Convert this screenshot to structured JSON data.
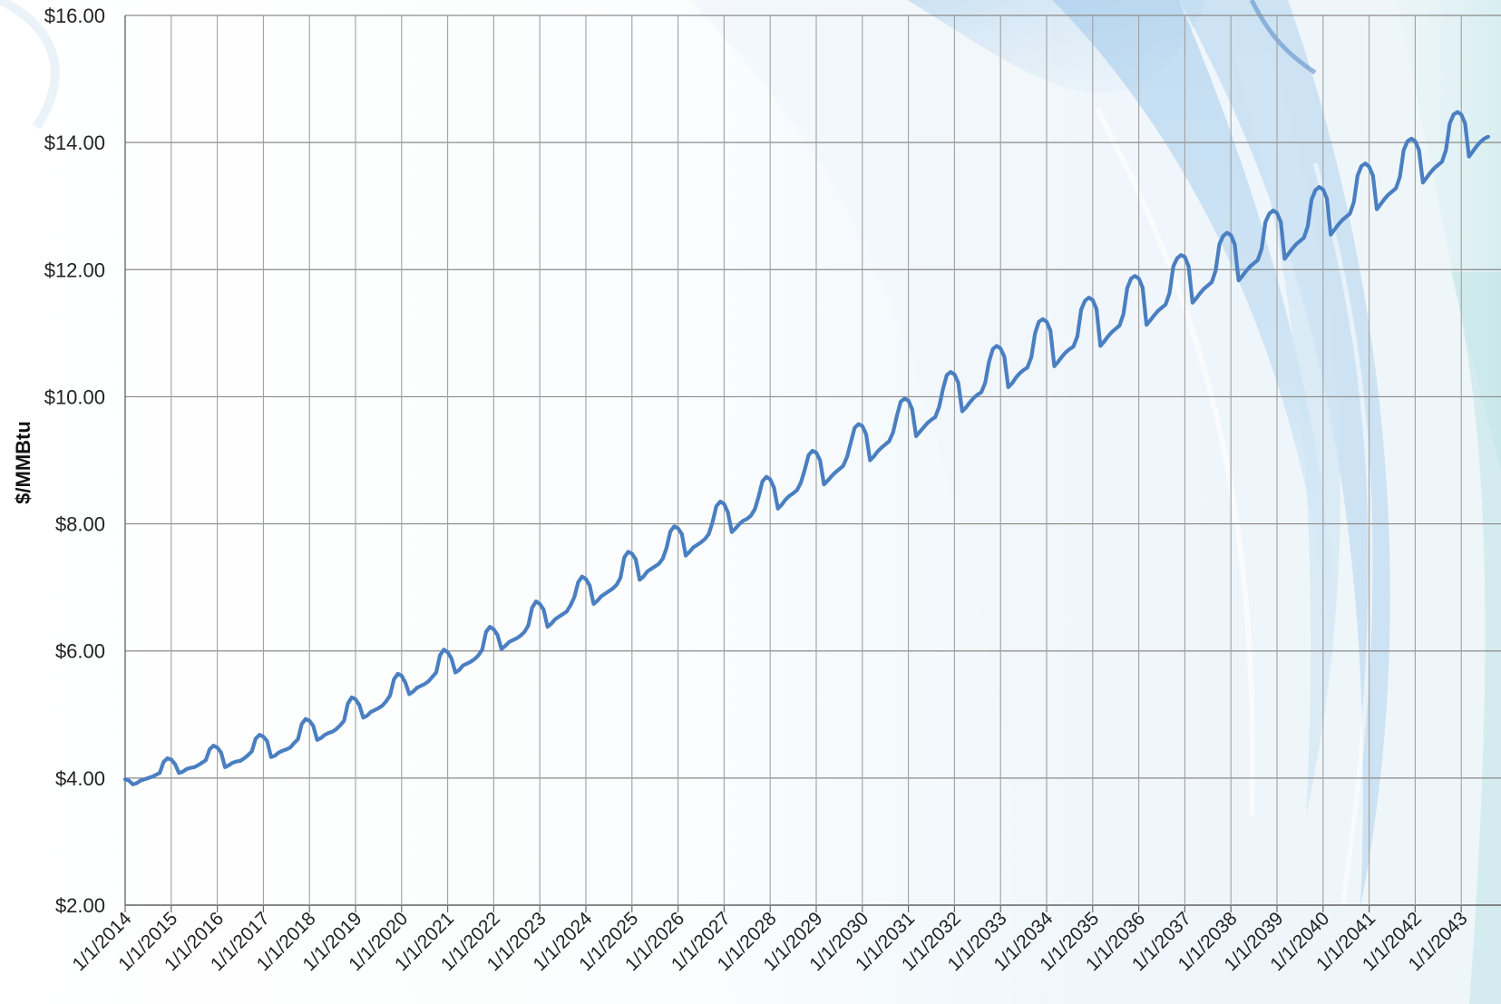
{
  "chart_data": {
    "type": "line",
    "title": "",
    "xlabel": "",
    "ylabel": "$/MMBtu",
    "ylim": [
      2,
      16
    ],
    "y_ticks": [
      16,
      14,
      12,
      10,
      8,
      6,
      4,
      2
    ],
    "y_tick_labels": [
      "$16.00",
      "$14.00",
      "$12.00",
      "$10.00",
      "$8.00",
      "$6.00",
      "$4.00",
      "$2.00"
    ],
    "x_range": [
      "2014-01-01",
      "2043-12-01"
    ],
    "x_tick_labels": [
      "1/1/2014",
      "1/1/2015",
      "1/1/2016",
      "1/1/2017",
      "1/1/2018",
      "1/1/2019",
      "1/1/2020",
      "1/1/2021",
      "1/1/2022",
      "1/1/2023",
      "1/1/2024",
      "1/1/2025",
      "1/1/2026",
      "1/1/2027",
      "1/1/2028",
      "1/1/2029",
      "1/1/2030",
      "1/1/2031",
      "1/1/2032",
      "1/1/2033",
      "1/1/2034",
      "1/1/2035",
      "1/1/2036",
      "1/1/2037",
      "1/1/2038",
      "1/1/2039",
      "1/1/2040",
      "1/1/2041",
      "1/1/2042",
      "1/1/2043"
    ],
    "grid": true,
    "line_color": "#4A7FC1",
    "series": [
      {
        "frequency": "monthly",
        "start": "2014-01",
        "values": [
          3.98,
          3.96,
          3.9,
          3.92,
          3.96,
          3.98,
          4.0,
          4.02,
          4.05,
          4.08,
          4.25,
          4.31,
          4.29,
          4.22,
          4.08,
          4.1,
          4.14,
          4.16,
          4.17,
          4.2,
          4.24,
          4.28,
          4.45,
          4.51,
          4.48,
          4.4,
          4.17,
          4.2,
          4.24,
          4.26,
          4.27,
          4.31,
          4.36,
          4.42,
          4.62,
          4.68,
          4.65,
          4.58,
          4.33,
          4.35,
          4.4,
          4.43,
          4.45,
          4.48,
          4.55,
          4.61,
          4.85,
          4.93,
          4.9,
          4.82,
          4.6,
          4.63,
          4.68,
          4.71,
          4.73,
          4.77,
          4.83,
          4.9,
          5.17,
          5.27,
          5.24,
          5.15,
          4.95,
          4.98,
          5.04,
          5.07,
          5.1,
          5.14,
          5.21,
          5.3,
          5.55,
          5.64,
          5.61,
          5.5,
          5.32,
          5.36,
          5.42,
          5.45,
          5.48,
          5.52,
          5.59,
          5.66,
          5.93,
          6.02,
          5.98,
          5.88,
          5.66,
          5.7,
          5.77,
          5.8,
          5.83,
          5.87,
          5.93,
          6.02,
          6.3,
          6.38,
          6.34,
          6.25,
          6.03,
          6.08,
          6.14,
          6.17,
          6.2,
          6.24,
          6.3,
          6.4,
          6.68,
          6.78,
          6.74,
          6.65,
          6.38,
          6.43,
          6.5,
          6.54,
          6.58,
          6.62,
          6.72,
          6.85,
          7.08,
          7.17,
          7.13,
          7.03,
          6.74,
          6.79,
          6.86,
          6.9,
          6.94,
          6.98,
          7.04,
          7.15,
          7.47,
          7.56,
          7.53,
          7.44,
          7.12,
          7.17,
          7.25,
          7.29,
          7.33,
          7.37,
          7.45,
          7.62,
          7.88,
          7.96,
          7.93,
          7.84,
          7.5,
          7.56,
          7.63,
          7.67,
          7.71,
          7.76,
          7.84,
          8.03,
          8.28,
          8.35,
          8.31,
          8.18,
          7.87,
          7.93,
          8.0,
          8.05,
          8.08,
          8.13,
          8.23,
          8.43,
          8.67,
          8.74,
          8.7,
          8.57,
          8.24,
          8.3,
          8.38,
          8.44,
          8.48,
          8.53,
          8.65,
          8.85,
          9.08,
          9.15,
          9.12,
          9.0,
          8.62,
          8.68,
          8.75,
          8.81,
          8.86,
          8.91,
          9.05,
          9.28,
          9.51,
          9.57,
          9.54,
          9.41,
          9.0,
          9.06,
          9.14,
          9.2,
          9.25,
          9.3,
          9.44,
          9.7,
          9.92,
          9.97,
          9.94,
          9.8,
          9.38,
          9.45,
          9.52,
          9.59,
          9.64,
          9.68,
          9.84,
          10.12,
          10.34,
          10.39,
          10.35,
          10.22,
          9.77,
          9.83,
          9.91,
          9.98,
          10.03,
          10.07,
          10.22,
          10.55,
          10.75,
          10.8,
          10.76,
          10.63,
          10.15,
          10.21,
          10.3,
          10.37,
          10.42,
          10.46,
          10.62,
          11.0,
          11.18,
          11.22,
          11.18,
          11.04,
          10.48,
          10.55,
          10.63,
          10.7,
          10.75,
          10.79,
          10.95,
          11.37,
          11.51,
          11.56,
          11.52,
          11.38,
          10.8,
          10.87,
          10.95,
          11.02,
          11.07,
          11.12,
          11.3,
          11.71,
          11.86,
          11.9,
          11.86,
          11.72,
          11.13,
          11.2,
          11.28,
          11.35,
          11.4,
          11.45,
          11.63,
          12.05,
          12.18,
          12.23,
          12.2,
          12.05,
          11.48,
          11.55,
          11.63,
          11.7,
          11.75,
          11.8,
          11.98,
          12.4,
          12.53,
          12.58,
          12.54,
          12.4,
          11.83,
          11.9,
          11.98,
          12.05,
          12.1,
          12.15,
          12.33,
          12.75,
          12.88,
          12.93,
          12.89,
          12.75,
          12.17,
          12.25,
          12.33,
          12.4,
          12.45,
          12.5,
          12.68,
          13.1,
          13.25,
          13.3,
          13.26,
          13.12,
          12.55,
          12.63,
          12.71,
          12.78,
          12.83,
          12.88,
          13.06,
          13.48,
          13.63,
          13.67,
          13.62,
          13.48,
          12.95,
          13.03,
          13.11,
          13.18,
          13.23,
          13.28,
          13.46,
          13.88,
          14.02,
          14.06,
          14.02,
          13.88,
          13.37,
          13.45,
          13.53,
          13.6,
          13.65,
          13.7,
          13.88,
          14.3,
          14.44,
          14.48,
          14.44,
          14.3,
          13.78,
          13.86,
          13.94,
          14.01,
          14.06,
          14.09
        ]
      }
    ]
  }
}
